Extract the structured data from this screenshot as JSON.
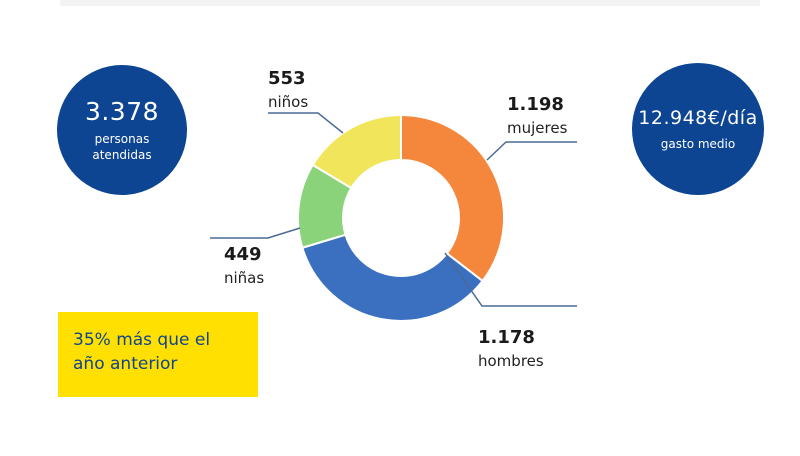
{
  "stats": {
    "left": {
      "value": "3.378",
      "line1": "personas",
      "line2": "atendidas"
    },
    "right": {
      "value": "12.948€/día",
      "label": "gasto medio"
    }
  },
  "callout": {
    "line1": "35% más que el",
    "line2": "año anterior"
  },
  "colors": {
    "circle": "#0d4592",
    "callout_bg": "#ffe000",
    "callout_text": "#0d4592",
    "leader_line": "#4a6a96"
  },
  "chart_data": {
    "type": "pie",
    "donut": true,
    "total": "3.378",
    "slices": [
      {
        "name": "mujeres",
        "value": 1198,
        "label": "1.198",
        "color": "#f5873c"
      },
      {
        "name": "hombres",
        "value": 1178,
        "label": "1.178",
        "color": "#3a70bf"
      },
      {
        "name": "niñas",
        "value": 449,
        "label": "449",
        "color": "#8bd37b"
      },
      {
        "name": "niños",
        "value": 553,
        "label": "553",
        "color": "#f1e65b"
      }
    ]
  }
}
